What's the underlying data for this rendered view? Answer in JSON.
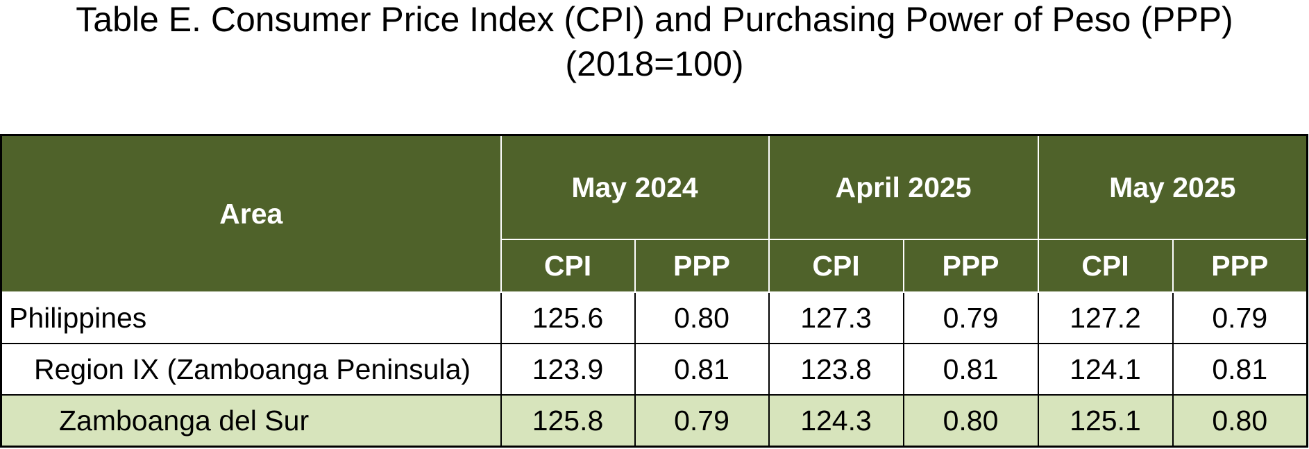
{
  "title": {
    "line1": "Table E. Consumer Price Index (CPI) and Purchasing Power of Peso (PPP)",
    "line2": "(2018=100)"
  },
  "table": {
    "area_header": "Area",
    "periods": [
      "May 2024",
      "April 2025",
      "May 2025"
    ],
    "sub_headers": {
      "cpi": "CPI",
      "ppp": "PPP"
    },
    "rows": [
      {
        "area": "Philippines",
        "values": [
          "125.6",
          "0.80",
          "127.3",
          "0.79",
          "127.2",
          "0.79"
        ]
      },
      {
        "area": "Region IX (Zamboanga Peninsula)",
        "values": [
          "123.9",
          "0.81",
          "123.8",
          "0.81",
          "124.1",
          "0.81"
        ]
      },
      {
        "area": "Zamboanga del Sur",
        "values": [
          "125.8",
          "0.79",
          "124.3",
          "0.80",
          "125.1",
          "0.80"
        ]
      }
    ]
  },
  "colors": {
    "header_bg": "#4f622a",
    "header_text": "#ffffff",
    "highlight_row_bg": "#d7e4bc",
    "border": "#000000"
  }
}
